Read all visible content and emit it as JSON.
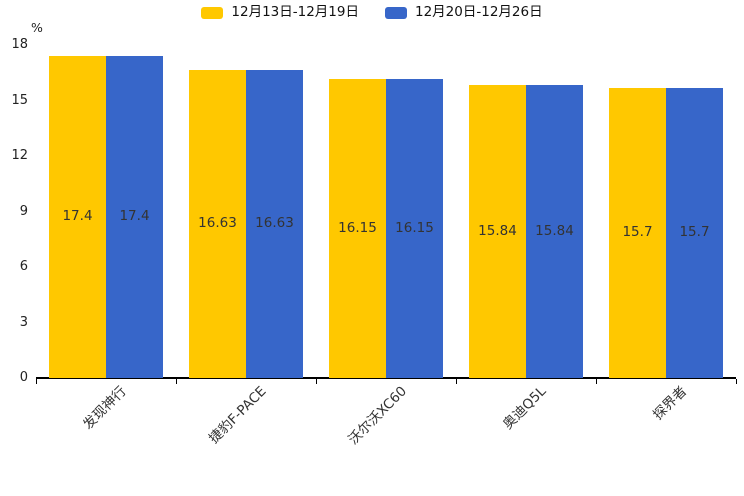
{
  "chart_data": {
    "type": "bar",
    "categories": [
      "发现神行",
      "捷豹F-PACE",
      "沃尔沃XC60",
      "奥迪Q5L",
      "探界者"
    ],
    "series": [
      {
        "name": "12月13日-12月19日",
        "color": "#FFC800",
        "values": [
          17.4,
          16.63,
          16.15,
          15.84,
          15.7
        ]
      },
      {
        "name": "12月20日-12月26日",
        "color": "#3766C9",
        "values": [
          17.4,
          16.63,
          16.15,
          15.84,
          15.7
        ]
      }
    ],
    "data_labels": [
      [
        "17.4",
        "16.63",
        "16.15",
        "15.84",
        "15.7"
      ],
      [
        "17.4",
        "16.63",
        "16.15",
        "15.84",
        "15.7"
      ]
    ],
    "title": "",
    "xlabel": "",
    "ylabel": "%",
    "ylim": [
      0,
      18
    ],
    "yticks": [
      0,
      3,
      6,
      9,
      12,
      15,
      18
    ],
    "grid": false,
    "legend_position": "top",
    "label_color": "#333333",
    "axis_color": "#000000",
    "tick_label_color": "#222222"
  }
}
